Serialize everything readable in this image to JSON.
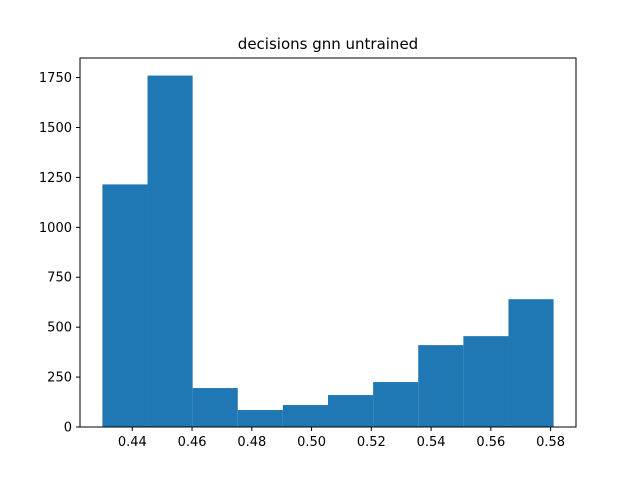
{
  "chart_data": {
    "type": "bar",
    "title": "decisions gnn untrained",
    "xlabel": "",
    "ylabel": "",
    "bin_edges": [
      0.43,
      0.4451,
      0.4602,
      0.4753,
      0.4904,
      0.5055,
      0.5206,
      0.5357,
      0.5508,
      0.5659,
      0.581
    ],
    "values": [
      1215,
      1760,
      195,
      85,
      110,
      160,
      225,
      410,
      455,
      640
    ],
    "xlim": [
      0.4225,
      0.5885
    ],
    "ylim": [
      0,
      1848
    ],
    "x_ticks": [
      0.44,
      0.46,
      0.48,
      0.5,
      0.52,
      0.54,
      0.56,
      0.58
    ],
    "x_tick_labels": [
      "0.44",
      "0.46",
      "0.48",
      "0.50",
      "0.52",
      "0.54",
      "0.56",
      "0.58"
    ],
    "y_ticks": [
      0,
      250,
      500,
      750,
      1000,
      1250,
      1500,
      1750
    ],
    "y_tick_labels": [
      "0",
      "250",
      "500",
      "750",
      "1000",
      "1250",
      "1500",
      "1750"
    ],
    "bar_color": "#1f77b4",
    "grid": false,
    "legend": "none"
  }
}
